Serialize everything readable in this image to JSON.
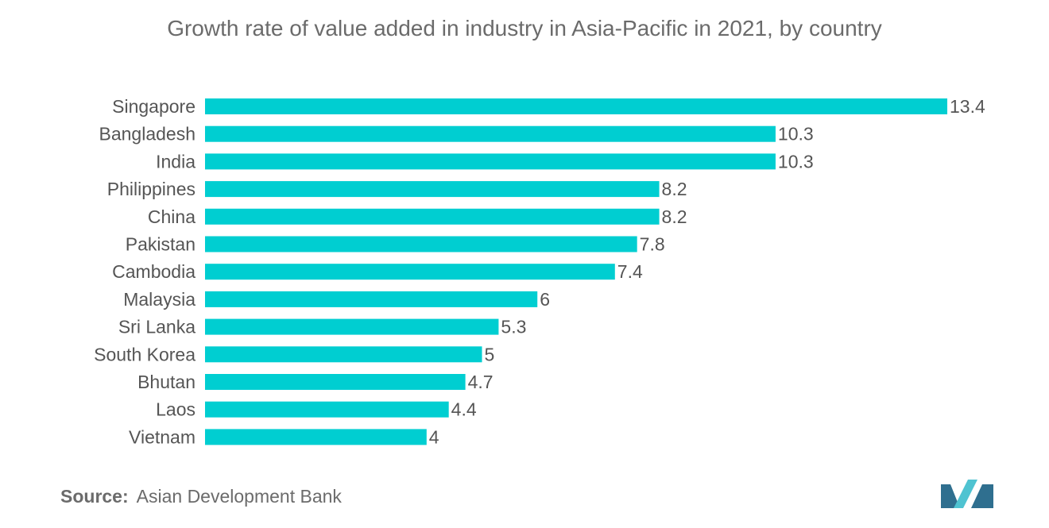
{
  "chart_data": {
    "type": "bar",
    "orientation": "horizontal",
    "title": "Growth rate of value added in industry in Asia-Pacific in 2021, by country",
    "xlabel": "",
    "ylabel": "",
    "categories": [
      "Singapore",
      "Bangladesh",
      "India",
      "Philippines",
      "China",
      "Pakistan",
      "Cambodia",
      "Malaysia",
      "Sri Lanka",
      "South Korea",
      "Bhutan",
      "Laos",
      "Vietnam"
    ],
    "values": [
      13.4,
      10.3,
      10.3,
      8.2,
      8.2,
      7.8,
      7.4,
      6,
      5.3,
      5,
      4.7,
      4.4,
      4
    ],
    "value_labels": [
      "13.4",
      "10.3",
      "10.3",
      "8.2",
      "8.2",
      "7.8",
      "7.4",
      "6",
      "5.3",
      "5",
      "4.7",
      "4.4",
      "4"
    ],
    "xlim": [
      0,
      13.4
    ],
    "grid": false,
    "legend": "none",
    "bar_color": "#00ced1"
  },
  "source": {
    "label": "Source:",
    "text": "Asian Development Bank"
  },
  "colors": {
    "text": "#6b6b6b",
    "label_text": "#555555",
    "logo_dark": "#2f6f8f",
    "logo_light": "#4fc3d1"
  }
}
